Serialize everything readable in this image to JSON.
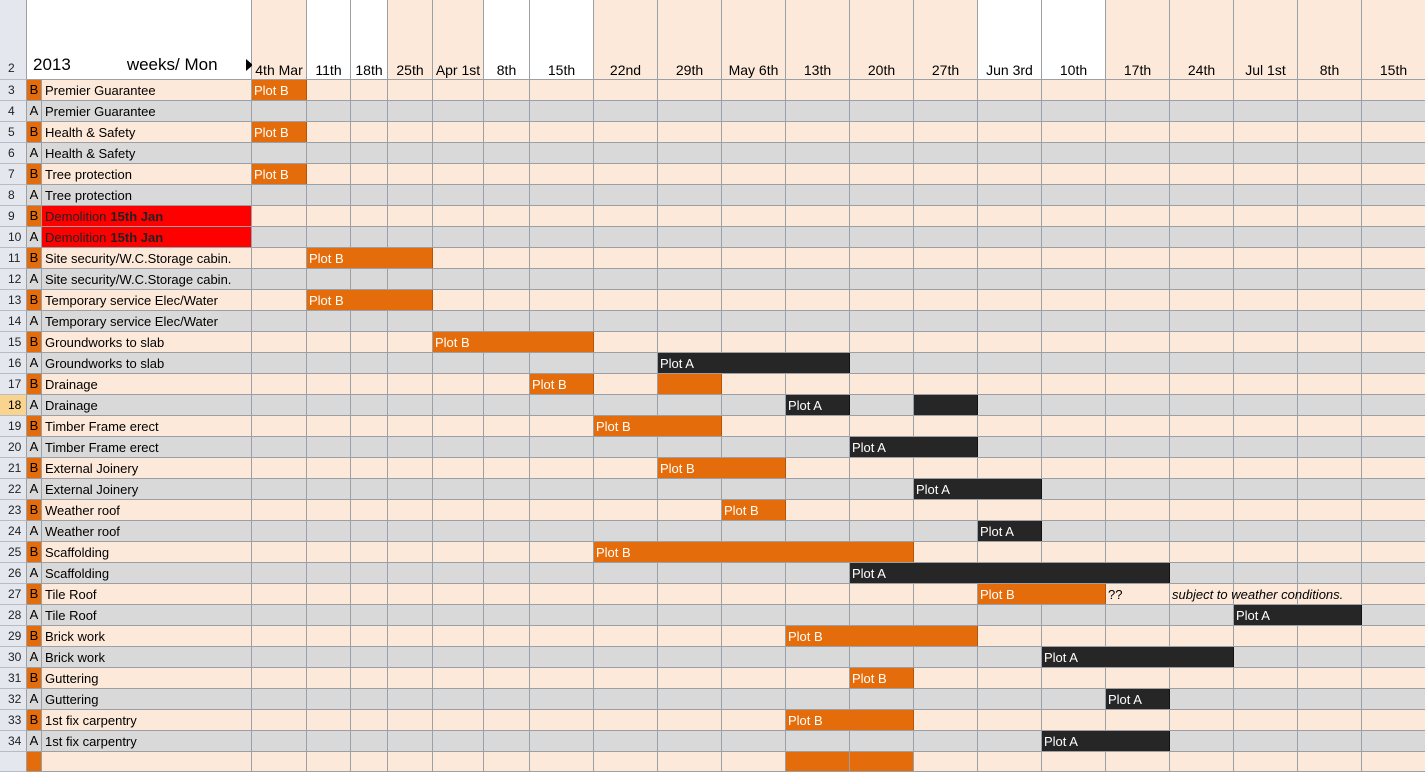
{
  "header": {
    "row_number": "2",
    "year": "2013",
    "weeks_label": "weeks/ Mon",
    "weeks": [
      "4th Mar",
      "11th",
      "18th",
      "25th",
      "Apr 1st",
      "8th",
      "15th",
      "22nd",
      "29th",
      "May 6th",
      "13th",
      "20th",
      "27th",
      "Jun 3rd",
      "10th",
      "17th",
      "24th",
      "Jul 1st",
      "8th",
      "15th"
    ]
  },
  "colors": {
    "plot_b": "#e46c0a",
    "plot_a": "#262626",
    "demolition": "#ff0000",
    "row_b_bg": "#fde9d9",
    "row_a_bg": "#d9d9d9",
    "selected_row_header": "#f8d48e"
  },
  "rows": [
    {
      "num": "3",
      "plot": "B",
      "task": "Premier Guarantee",
      "bars": [
        {
          "start": 0,
          "len": 1,
          "label": "Plot B"
        }
      ]
    },
    {
      "num": "4",
      "plot": "A",
      "task": "Premier Guarantee",
      "bars": []
    },
    {
      "num": "5",
      "plot": "B",
      "task": "Health & Safety",
      "bars": [
        {
          "start": 0,
          "len": 1,
          "label": "Plot B"
        }
      ]
    },
    {
      "num": "6",
      "plot": "A",
      "task": "Health & Safety",
      "bars": []
    },
    {
      "num": "7",
      "plot": "B",
      "task": "Tree protection",
      "bars": [
        {
          "start": 0,
          "len": 1,
          "label": "Plot B"
        }
      ]
    },
    {
      "num": "8",
      "plot": "A",
      "task": "Tree protection",
      "bars": []
    },
    {
      "num": "9",
      "plot": "B",
      "task": "Demolition",
      "task_bold": "15th Jan",
      "red": true,
      "bars": []
    },
    {
      "num": "10",
      "plot": "A",
      "task": "Demolition",
      "task_bold": "15th Jan",
      "red": true,
      "bars": []
    },
    {
      "num": "11",
      "plot": "B",
      "task": "Site security/W.C.Storage cabin.",
      "bars": [
        {
          "start": 1,
          "len": 3,
          "label": "Plot B"
        }
      ]
    },
    {
      "num": "12",
      "plot": "A",
      "task": "Site security/W.C.Storage cabin.",
      "bars": []
    },
    {
      "num": "13",
      "plot": "B",
      "task": "Temporary service Elec/Water",
      "bars": [
        {
          "start": 1,
          "len": 3,
          "label": "Plot B"
        }
      ]
    },
    {
      "num": "14",
      "plot": "A",
      "task": "Temporary service Elec/Water",
      "bars": []
    },
    {
      "num": "15",
      "plot": "B",
      "task": "Groundworks to slab",
      "bars": [
        {
          "start": 4,
          "len": 3,
          "label": "Plot B"
        }
      ]
    },
    {
      "num": "16",
      "plot": "A",
      "task": "Groundworks to slab",
      "bars": [
        {
          "start": 8,
          "len": 3,
          "label": "Plot A"
        }
      ]
    },
    {
      "num": "17",
      "plot": "B",
      "task": "Drainage",
      "bars": [
        {
          "start": 6,
          "len": 1,
          "label": "Plot B"
        },
        {
          "start": 8,
          "len": 1,
          "label": ""
        }
      ]
    },
    {
      "num": "18",
      "plot": "A",
      "task": "Drainage",
      "selected": true,
      "bars": [
        {
          "start": 10,
          "len": 1,
          "label": "Plot A"
        },
        {
          "start": 12,
          "len": 1,
          "label": ""
        }
      ]
    },
    {
      "num": "19",
      "plot": "B",
      "task": "Timber Frame erect",
      "bars": [
        {
          "start": 7,
          "len": 2,
          "label": "Plot B"
        }
      ]
    },
    {
      "num": "20",
      "plot": "A",
      "task": "Timber Frame erect",
      "bars": [
        {
          "start": 11,
          "len": 2,
          "label": "Plot A"
        }
      ]
    },
    {
      "num": "21",
      "plot": "B",
      "task": "External Joinery",
      "bars": [
        {
          "start": 8,
          "len": 2,
          "label": "Plot B"
        }
      ]
    },
    {
      "num": "22",
      "plot": "A",
      "task": "External Joinery",
      "bars": [
        {
          "start": 12,
          "len": 2,
          "label": "Plot A"
        }
      ]
    },
    {
      "num": "23",
      "plot": "B",
      "task": "Weather roof",
      "bars": [
        {
          "start": 9,
          "len": 1,
          "label": "Plot B"
        }
      ]
    },
    {
      "num": "24",
      "plot": "A",
      "task": "Weather roof",
      "bars": [
        {
          "start": 13,
          "len": 1,
          "label": "Plot A"
        }
      ]
    },
    {
      "num": "25",
      "plot": "B",
      "task": "Scaffolding",
      "bars": [
        {
          "start": 7,
          "len": 5,
          "label": "Plot B"
        }
      ]
    },
    {
      "num": "26",
      "plot": "A",
      "task": "Scaffolding",
      "bars": [
        {
          "start": 11,
          "len": 5,
          "label": "Plot A"
        }
      ]
    },
    {
      "num": "27",
      "plot": "B",
      "task": "Tile Roof",
      "bars": [
        {
          "start": 13,
          "len": 2,
          "label": "Plot B"
        }
      ],
      "notes": [
        {
          "col": 15,
          "text": "??",
          "italic": false
        },
        {
          "col": 16,
          "text": "subject to weather conditions.",
          "italic": true
        }
      ]
    },
    {
      "num": "28",
      "plot": "A",
      "task": "Tile Roof",
      "bars": [
        {
          "start": 17,
          "len": 2,
          "label": "Plot A"
        }
      ]
    },
    {
      "num": "29",
      "plot": "B",
      "task": "Brick work",
      "bars": [
        {
          "start": 10,
          "len": 3,
          "label": "Plot B"
        }
      ]
    },
    {
      "num": "30",
      "plot": "A",
      "task": "Brick work",
      "bars": [
        {
          "start": 14,
          "len": 3,
          "label": "Plot A"
        }
      ]
    },
    {
      "num": "31",
      "plot": "B",
      "task": "Guttering",
      "bars": [
        {
          "start": 11,
          "len": 1,
          "label": "Plot B"
        }
      ]
    },
    {
      "num": "32",
      "plot": "A",
      "task": "Guttering",
      "bars": [
        {
          "start": 15,
          "len": 1,
          "label": "Plot A"
        }
      ]
    },
    {
      "num": "33",
      "plot": "B",
      "task": "1st fix carpentry",
      "bars": [
        {
          "start": 10,
          "len": 2,
          "label": "Plot B"
        }
      ]
    },
    {
      "num": "34",
      "plot": "A",
      "task": "1st fix carpentry",
      "bars": [
        {
          "start": 14,
          "len": 2,
          "label": "Plot A"
        }
      ]
    }
  ]
}
